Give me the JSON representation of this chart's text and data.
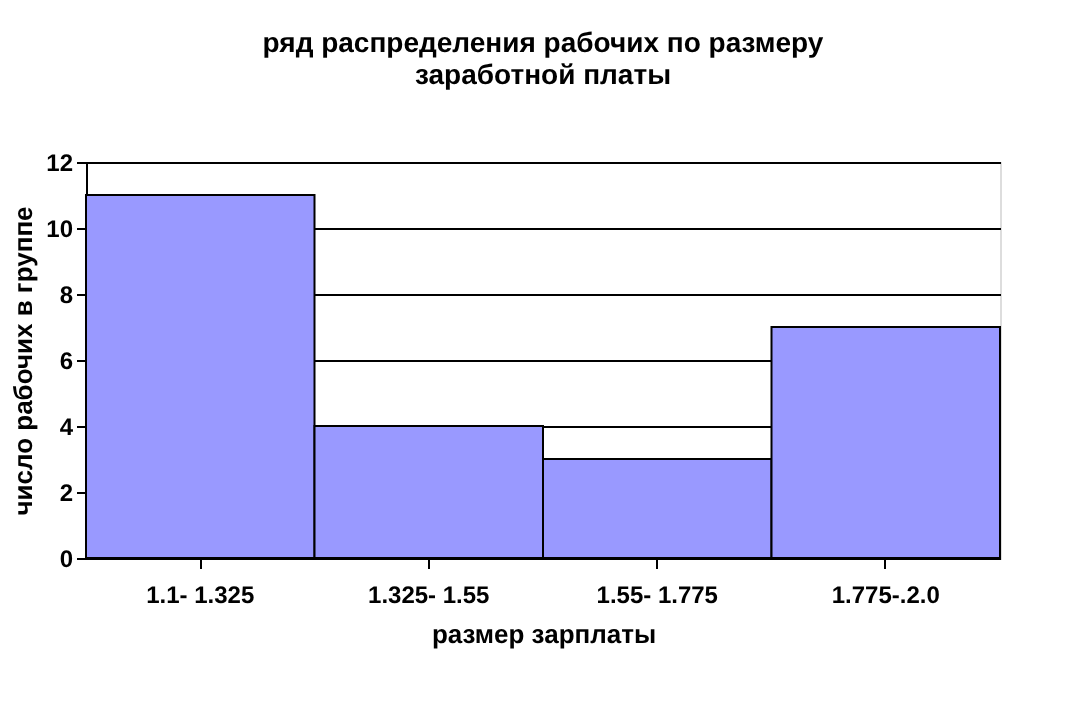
{
  "chart_data": {
    "type": "bar",
    "title": [
      "ряд  распределения  рабочих  по  размеру",
      "заработной платы"
    ],
    "xlabel": "размер зарплаты",
    "ylabel": "число рабочих в группе",
    "categories": [
      "1.1- 1.325",
      "1.325- 1.55",
      "1.55- 1.775",
      "1.775-.2.0"
    ],
    "values": [
      11,
      4,
      3,
      7
    ],
    "color": "#9999ff",
    "ylim": [
      0,
      12
    ],
    "yticks": [
      0,
      2,
      4,
      6,
      8,
      10,
      12
    ],
    "grid": "y"
  }
}
